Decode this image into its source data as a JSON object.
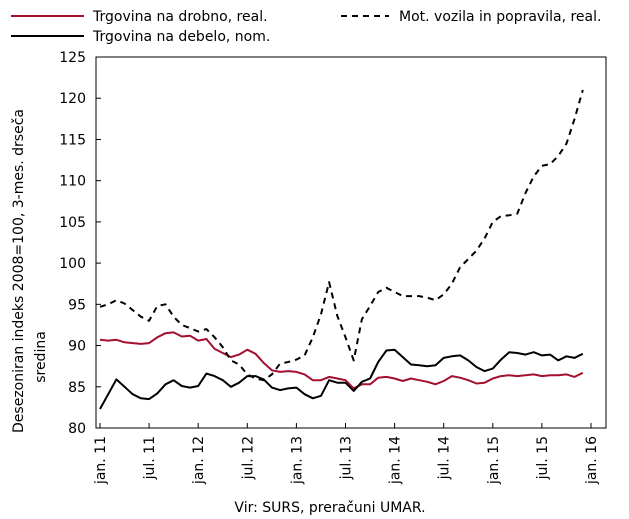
{
  "chart_data": {
    "type": "line",
    "ylabel_lines": [
      "Desezoniran indeks 2008=100, 3-mes. drseča",
      "sredina"
    ],
    "ylim": [
      80,
      125
    ],
    "yticks": [
      80,
      85,
      90,
      95,
      100,
      105,
      110,
      115,
      120,
      125
    ],
    "x_range": [
      0,
      60
    ],
    "xticks": [
      {
        "label": "jan. 11",
        "x": 0
      },
      {
        "label": "jul. 11",
        "x": 6
      },
      {
        "label": "jan. 12",
        "x": 12
      },
      {
        "label": "jul. 12",
        "x": 18
      },
      {
        "label": "jan. 13",
        "x": 24
      },
      {
        "label": "jul. 13",
        "x": 30
      },
      {
        "label": "jan. 14",
        "x": 36
      },
      {
        "label": "jul. 14",
        "x": 42
      },
      {
        "label": "jan. 15",
        "x": 48
      },
      {
        "label": "jul. 15",
        "x": 54
      },
      {
        "label": "jan. 16",
        "x": 60
      }
    ],
    "grid": false,
    "legend_position": "top",
    "source": "Vir: SURS, preračuni UMAR.",
    "series": [
      {
        "name": "Trgovina na drobno, real.",
        "color": "#A3102E",
        "style": "solid",
        "values": [
          90.7,
          90.6,
          90.7,
          90.4,
          90.3,
          90.2,
          90.3,
          91.0,
          91.5,
          91.6,
          91.1,
          91.2,
          90.6,
          90.8,
          89.6,
          89.1,
          88.6,
          88.9,
          89.5,
          89.0,
          87.9,
          87.0,
          86.8,
          86.9,
          86.8,
          86.5,
          85.8,
          85.8,
          86.2,
          86.0,
          85.8,
          84.8,
          85.3,
          85.3,
          86.1,
          86.2,
          86.0,
          85.7,
          86.0,
          85.8,
          85.6,
          85.3,
          85.7,
          86.3,
          86.1,
          85.8,
          85.4,
          85.5,
          86.0,
          86.3,
          86.4,
          86.3,
          86.4,
          86.5,
          86.3,
          86.4,
          86.4,
          86.5,
          86.2,
          86.7
        ]
      },
      {
        "name": "Trgovina na debelo, nom.",
        "color": "#000000",
        "style": "solid",
        "values": [
          82.3,
          84.1,
          85.9,
          85.0,
          84.1,
          83.6,
          83.5,
          84.2,
          85.3,
          85.8,
          85.1,
          84.9,
          85.1,
          86.6,
          86.3,
          85.8,
          85.0,
          85.5,
          86.3,
          86.3,
          85.9,
          84.9,
          84.6,
          84.8,
          84.9,
          84.1,
          83.6,
          83.9,
          85.8,
          85.5,
          85.5,
          84.5,
          85.6,
          86.0,
          88.0,
          89.4,
          89.5,
          88.6,
          87.7,
          87.6,
          87.5,
          87.6,
          88.5,
          88.7,
          88.8,
          88.2,
          87.4,
          86.9,
          87.2,
          88.3,
          89.2,
          89.1,
          88.9,
          89.2,
          88.8,
          88.9,
          88.2,
          88.7,
          88.5,
          89.0
        ]
      },
      {
        "name": "Mot. vozila in popravila, real.",
        "color": "#000000",
        "style": "dashed",
        "values": [
          94.7,
          95.0,
          95.5,
          95.1,
          94.3,
          93.5,
          93.0,
          94.8,
          95.0,
          93.5,
          92.5,
          92.1,
          91.7,
          92.0,
          91.0,
          89.8,
          88.2,
          87.7,
          86.5,
          86.0,
          85.8,
          86.5,
          87.8,
          88.0,
          88.3,
          88.8,
          91.0,
          93.8,
          97.7,
          93.6,
          91.0,
          88.2,
          93.2,
          94.8,
          96.5,
          97.0,
          96.5,
          96.0,
          96.0,
          96.0,
          95.8,
          95.5,
          96.2,
          97.5,
          99.5,
          100.5,
          101.5,
          103.0,
          105.0,
          105.7,
          105.8,
          106.0,
          108.5,
          110.5,
          111.8,
          112.0,
          113.0,
          114.5,
          117.5,
          121.0
        ]
      }
    ]
  }
}
